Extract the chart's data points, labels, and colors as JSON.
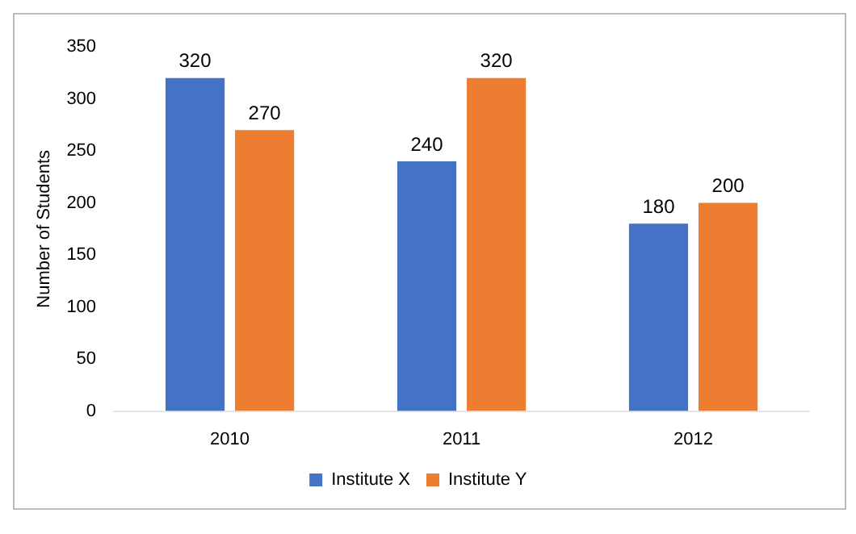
{
  "chart_data": {
    "type": "bar",
    "ylabel": "Number of Students",
    "categories": [
      "2010",
      "2011",
      "2012"
    ],
    "series": [
      {
        "name": "Institute X",
        "color": "#4472c4",
        "values": [
          320,
          240,
          180
        ]
      },
      {
        "name": "Institute Y",
        "color": "#ed7d31",
        "values": [
          270,
          320,
          200
        ]
      }
    ],
    "ylim": [
      0,
      350
    ],
    "yticks": [
      0,
      50,
      100,
      150,
      200,
      250,
      300,
      350
    ],
    "data_labels": true,
    "legend": "bottom",
    "grid": false
  }
}
